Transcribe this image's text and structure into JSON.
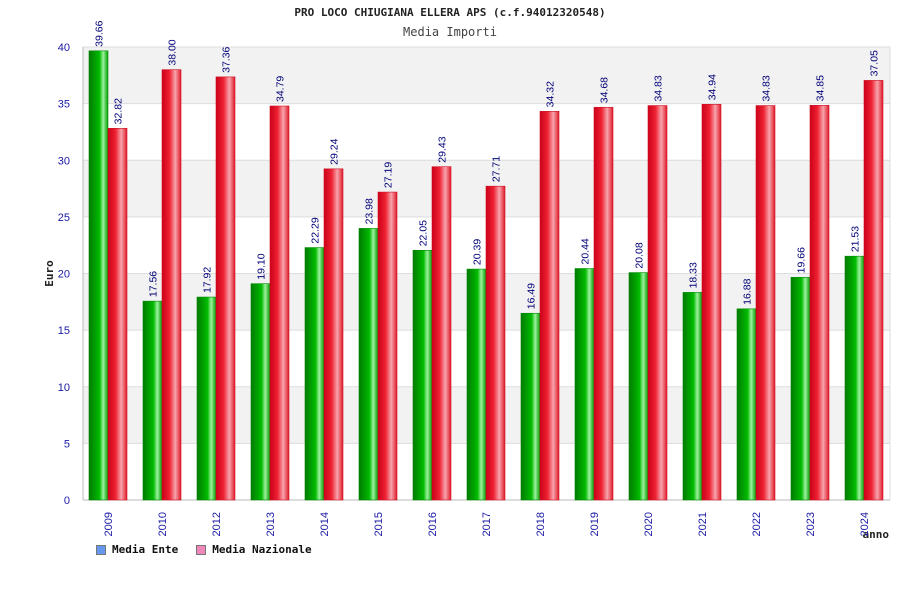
{
  "header": {
    "title": "PRO LOCO CHIUGIANA ELLERA APS (c.f.94012320548)",
    "subtitle": "Media Importi"
  },
  "colors": {
    "ente": "#00bb00",
    "nazionale": "#ee2233",
    "ente_legend": "#6699ee",
    "nazionale_legend": "#ee88bb",
    "axis_text": "#1a1aa6",
    "grid_band": "#f2f2f2"
  },
  "legend": [
    {
      "label": "Media Ente",
      "color_key": "ente_legend"
    },
    {
      "label": "Media Nazionale",
      "color_key": "nazionale_legend"
    }
  ],
  "chart_data": {
    "type": "bar",
    "title": "PRO LOCO CHIUGIANA ELLERA APS (c.f.94012320548)",
    "subtitle": "Media Importi",
    "xlabel": "anno",
    "ylabel": "Euro",
    "ylim": [
      0,
      40
    ],
    "yticks": [
      0,
      5,
      10,
      15,
      20,
      25,
      30,
      35,
      40
    ],
    "grid": true,
    "legend_position": "bottom-left",
    "categories": [
      "2009",
      "2010",
      "2012",
      "2013",
      "2014",
      "2015",
      "2016",
      "2017",
      "2018",
      "2019",
      "2020",
      "2021",
      "2022",
      "2023",
      "2024"
    ],
    "series": [
      {
        "name": "Media Ente",
        "values": [
          39.66,
          17.56,
          17.92,
          19.1,
          22.29,
          23.98,
          22.05,
          20.39,
          16.49,
          20.44,
          20.08,
          18.33,
          16.88,
          19.66,
          21.53
        ],
        "labels": [
          "39.66",
          "17.56",
          "17.92",
          "19.10",
          "22.29",
          "23.98",
          "22.05",
          "20.39",
          "16.49",
          "20.44",
          "20.08",
          "18.33",
          "16.88",
          "19.66",
          "21.53"
        ]
      },
      {
        "name": "Media Nazionale",
        "values": [
          32.82,
          38.0,
          37.36,
          34.79,
          29.24,
          27.19,
          29.43,
          27.71,
          34.32,
          34.68,
          34.83,
          34.94,
          34.83,
          34.85,
          37.05
        ],
        "labels": [
          "32.82",
          "38.00",
          "37.36",
          "34.79",
          "29.24",
          "27.19",
          "29.43",
          "27.71",
          "34.32",
          "34.68",
          "34.83",
          "34.94",
          "34.83",
          "34.85",
          "37.05"
        ]
      }
    ]
  }
}
